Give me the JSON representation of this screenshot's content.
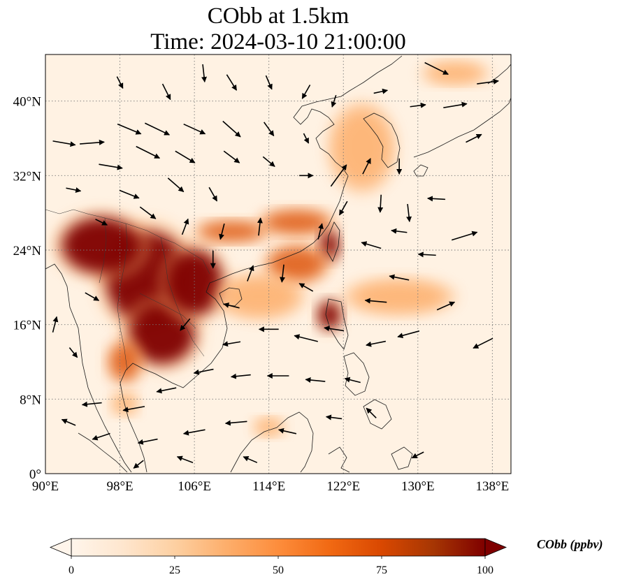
{
  "title": {
    "line1": "CObb at 1.5km",
    "line2": "Time: 2024-03-10 21:00:00"
  },
  "map": {
    "region": "East and Southeast Asia",
    "lon_range": [
      90,
      140
    ],
    "lat_range": [
      0,
      45
    ],
    "gridlines": "dotted",
    "lon_ticks": [
      {
        "value": 90,
        "label": "90°E"
      },
      {
        "value": 98,
        "label": "98°E"
      },
      {
        "value": 106,
        "label": "106°E"
      },
      {
        "value": 114,
        "label": "114°E"
      },
      {
        "value": 122,
        "label": "122°E"
      },
      {
        "value": 130,
        "label": "130°E"
      },
      {
        "value": 138,
        "label": "138°E"
      }
    ],
    "lat_ticks": [
      {
        "value": 0,
        "label": "0°"
      },
      {
        "value": 8,
        "label": "8°N"
      },
      {
        "value": 16,
        "label": "16°N"
      },
      {
        "value": 24,
        "label": "24°N"
      },
      {
        "value": 32,
        "label": "32°N"
      },
      {
        "value": 40,
        "label": "40°N"
      }
    ],
    "field_colors": {
      "low": "#fff5eb",
      "mid": "#fdae6b",
      "high": "#d94801",
      "max": "#7f0000"
    },
    "plumes": [
      {
        "lon": 101,
        "lat": 21,
        "rlon": 4.5,
        "rlat": 5.0,
        "level": "max"
      },
      {
        "lon": 96,
        "lat": 24.5,
        "rlon": 4.2,
        "rlat": 3.0,
        "level": "max"
      },
      {
        "lon": 102.5,
        "lat": 15,
        "rlon": 3.5,
        "rlat": 3.2,
        "level": "max"
      },
      {
        "lon": 106,
        "lat": 20.5,
        "rlon": 3.0,
        "rlat": 3.5,
        "level": "max"
      },
      {
        "lon": 98.5,
        "lat": 12,
        "rlon": 1.6,
        "rlat": 2.0,
        "level": "high"
      },
      {
        "lon": 110,
        "lat": 26,
        "rlon": 3.5,
        "rlat": 1.0,
        "level": "high"
      },
      {
        "lon": 117,
        "lat": 27,
        "rlon": 3.5,
        "rlat": 1.2,
        "level": "high"
      },
      {
        "lon": 120.5,
        "lat": 24.5,
        "rlon": 1.0,
        "rlat": 1.6,
        "level": "max"
      },
      {
        "lon": 117,
        "lat": 22.5,
        "rlon": 3.0,
        "rlat": 1.8,
        "level": "high"
      },
      {
        "lon": 120.5,
        "lat": 17,
        "rlon": 1.2,
        "rlat": 1.5,
        "level": "max"
      },
      {
        "lon": 113,
        "lat": 19,
        "rlon": 4.0,
        "rlat": 2.0,
        "level": "mid"
      },
      {
        "lon": 98.5,
        "lat": 7.5,
        "rlon": 1.2,
        "rlat": 1.0,
        "level": "mid"
      },
      {
        "lon": 114,
        "lat": 5,
        "rlon": 1.4,
        "rlat": 0.8,
        "level": "mid"
      },
      {
        "lon": 124,
        "lat": 35,
        "rlon": 3.0,
        "rlat": 4.0,
        "level": "mid"
      },
      {
        "lon": 134,
        "lat": 43,
        "rlon": 3.0,
        "rlat": 1.0,
        "level": "mid"
      },
      {
        "lon": 128,
        "lat": 19,
        "rlon": 5.0,
        "rlat": 1.6,
        "level": "mid"
      }
    ],
    "wind_vectors": [
      {
        "lon": 92,
        "lat": 35.5,
        "u": 2.3,
        "v": -0.4
      },
      {
        "lon": 95,
        "lat": 35.5,
        "u": 2.5,
        "v": 0.2
      },
      {
        "lon": 99,
        "lat": 37,
        "u": 2.4,
        "v": -1.0
      },
      {
        "lon": 102,
        "lat": 37,
        "u": 2.5,
        "v": -1.2
      },
      {
        "lon": 106,
        "lat": 37,
        "u": 2.2,
        "v": -1.0
      },
      {
        "lon": 110,
        "lat": 37,
        "u": 1.8,
        "v": -1.6
      },
      {
        "lon": 114,
        "lat": 37,
        "u": 1.0,
        "v": -1.4
      },
      {
        "lon": 97,
        "lat": 33,
        "u": 2.4,
        "v": -0.4
      },
      {
        "lon": 101,
        "lat": 34.5,
        "u": 2.4,
        "v": -1.2
      },
      {
        "lon": 105,
        "lat": 34,
        "u": 2.0,
        "v": -1.2
      },
      {
        "lon": 110,
        "lat": 34,
        "u": 1.6,
        "v": -1.2
      },
      {
        "lon": 114,
        "lat": 33.5,
        "u": 1.2,
        "v": -1.0
      },
      {
        "lon": 99,
        "lat": 30,
        "u": 2.0,
        "v": -0.8
      },
      {
        "lon": 104,
        "lat": 31,
        "u": 1.6,
        "v": -1.4
      },
      {
        "lon": 93,
        "lat": 30.5,
        "u": 1.5,
        "v": -0.3
      },
      {
        "lon": 108,
        "lat": 30,
        "u": 0.8,
        "v": -1.4
      },
      {
        "lon": 98,
        "lat": 42,
        "u": 0.6,
        "v": -1.2
      },
      {
        "lon": 103,
        "lat": 41,
        "u": 0.8,
        "v": -1.6
      },
      {
        "lon": 107,
        "lat": 43,
        "u": 0.2,
        "v": -1.8
      },
      {
        "lon": 110,
        "lat": 42,
        "u": 1.0,
        "v": -1.6
      },
      {
        "lon": 114,
        "lat": 42,
        "u": 0.6,
        "v": -1.4
      },
      {
        "lon": 118,
        "lat": 41,
        "u": -0.8,
        "v": -1.4
      },
      {
        "lon": 121,
        "lat": 40,
        "u": -0.4,
        "v": -1.2
      },
      {
        "lon": 118,
        "lat": 36,
        "u": 0.5,
        "v": -1.0
      },
      {
        "lon": 118,
        "lat": 32,
        "u": 1.4,
        "v": 0.0
      },
      {
        "lon": 121.5,
        "lat": 32,
        "u": 1.6,
        "v": 2.2
      },
      {
        "lon": 124.5,
        "lat": 33,
        "u": 0.8,
        "v": 1.6
      },
      {
        "lon": 126,
        "lat": 29,
        "u": -0.1,
        "v": -1.8
      },
      {
        "lon": 128,
        "lat": 33,
        "u": 0.0,
        "v": -1.6
      },
      {
        "lon": 129,
        "lat": 28,
        "u": 0.2,
        "v": -1.8
      },
      {
        "lon": 126,
        "lat": 41,
        "u": 1.4,
        "v": 0.3
      },
      {
        "lon": 130,
        "lat": 39.5,
        "u": 1.6,
        "v": 0.2
      },
      {
        "lon": 134,
        "lat": 39.5,
        "u": 2.4,
        "v": 0.4
      },
      {
        "lon": 137.5,
        "lat": 42,
        "u": 2.2,
        "v": 0.3
      },
      {
        "lon": 132,
        "lat": 43.5,
        "u": 2.4,
        "v": -1.2
      },
      {
        "lon": 136,
        "lat": 36,
        "u": 1.6,
        "v": 0.8
      },
      {
        "lon": 132,
        "lat": 29.5,
        "u": -1.8,
        "v": 0.1
      },
      {
        "lon": 135,
        "lat": 25.5,
        "u": 2.6,
        "v": 0.8
      },
      {
        "lon": 131,
        "lat": 23.5,
        "u": -1.8,
        "v": 0.1
      },
      {
        "lon": 128,
        "lat": 26,
        "u": -1.6,
        "v": 0.2
      },
      {
        "lon": 125,
        "lat": 24.5,
        "u": -2.0,
        "v": 0.6
      },
      {
        "lon": 128,
        "lat": 21,
        "u": -2.0,
        "v": 0.4
      },
      {
        "lon": 125.5,
        "lat": 18.5,
        "u": -2.2,
        "v": 0.2
      },
      {
        "lon": 133,
        "lat": 18,
        "u": 1.8,
        "v": 0.8
      },
      {
        "lon": 137,
        "lat": 14,
        "u": -2.0,
        "v": -1.0
      },
      {
        "lon": 129,
        "lat": 15,
        "u": -2.2,
        "v": -0.6
      },
      {
        "lon": 125.5,
        "lat": 14,
        "u": -2.0,
        "v": -0.4
      },
      {
        "lon": 121,
        "lat": 15.5,
        "u": -2.0,
        "v": 0.3
      },
      {
        "lon": 118,
        "lat": 14.5,
        "u": -2.4,
        "v": 0.6
      },
      {
        "lon": 114,
        "lat": 15.5,
        "u": -2.0,
        "v": 0.0
      },
      {
        "lon": 110,
        "lat": 14,
        "u": -1.8,
        "v": -0.3
      },
      {
        "lon": 107,
        "lat": 11,
        "u": -2.0,
        "v": -0.4
      },
      {
        "lon": 111,
        "lat": 10.5,
        "u": -2.0,
        "v": -0.2
      },
      {
        "lon": 115,
        "lat": 10.5,
        "u": -2.2,
        "v": 0.0
      },
      {
        "lon": 119,
        "lat": 10,
        "u": -2.0,
        "v": 0.2
      },
      {
        "lon": 123,
        "lat": 10,
        "u": -1.6,
        "v": 0.4
      },
      {
        "lon": 125,
        "lat": 6.5,
        "u": -1.0,
        "v": 1.0
      },
      {
        "lon": 103,
        "lat": 9,
        "u": -2.0,
        "v": -0.4
      },
      {
        "lon": 99.5,
        "lat": 7,
        "u": -2.2,
        "v": -0.4
      },
      {
        "lon": 95,
        "lat": 7.5,
        "u": -2.0,
        "v": -0.2
      },
      {
        "lon": 92.5,
        "lat": 5.5,
        "u": -1.4,
        "v": 0.6
      },
      {
        "lon": 96,
        "lat": 4,
        "u": -1.8,
        "v": -0.6
      },
      {
        "lon": 101,
        "lat": 3.5,
        "u": -2.0,
        "v": -0.4
      },
      {
        "lon": 106,
        "lat": 4.5,
        "u": -2.2,
        "v": -0.4
      },
      {
        "lon": 110.5,
        "lat": 5.5,
        "u": -2.2,
        "v": -0.2
      },
      {
        "lon": 116,
        "lat": 4.5,
        "u": -1.8,
        "v": 0.4
      },
      {
        "lon": 121,
        "lat": 6,
        "u": -1.6,
        "v": 0.2
      },
      {
        "lon": 105,
        "lat": 1.5,
        "u": -1.6,
        "v": 0.6
      },
      {
        "lon": 112,
        "lat": 1.5,
        "u": -1.4,
        "v": 0.6
      },
      {
        "lon": 130,
        "lat": 2,
        "u": -1.2,
        "v": -0.6
      },
      {
        "lon": 100,
        "lat": 1,
        "u": -1.0,
        "v": -0.8
      },
      {
        "lon": 93,
        "lat": 13,
        "u": 0.8,
        "v": -1.0
      },
      {
        "lon": 91,
        "lat": 16,
        "u": 0.4,
        "v": 1.6
      },
      {
        "lon": 95,
        "lat": 19,
        "u": 1.4,
        "v": -0.8
      },
      {
        "lon": 108,
        "lat": 23,
        "u": 0.0,
        "v": -1.8
      },
      {
        "lon": 112,
        "lat": 21.5,
        "u": 0.6,
        "v": 1.6
      },
      {
        "lon": 115.5,
        "lat": 21.5,
        "u": -0.2,
        "v": -1.8
      },
      {
        "lon": 118,
        "lat": 20,
        "u": -1.4,
        "v": 0.8
      },
      {
        "lon": 113,
        "lat": 26.5,
        "u": 0.2,
        "v": 1.8
      },
      {
        "lon": 109,
        "lat": 26,
        "u": -0.4,
        "v": -1.6
      },
      {
        "lon": 105,
        "lat": 26.5,
        "u": 0.6,
        "v": 1.6
      },
      {
        "lon": 101,
        "lat": 28,
        "u": 1.6,
        "v": -1.2
      },
      {
        "lon": 96,
        "lat": 27,
        "u": 1.2,
        "v": -0.6
      },
      {
        "lon": 122,
        "lat": 28.5,
        "u": -0.8,
        "v": -1.4
      },
      {
        "lon": 119.5,
        "lat": 26,
        "u": 0.4,
        "v": 1.6
      },
      {
        "lon": 110,
        "lat": 18,
        "u": -1.6,
        "v": 0.4
      },
      {
        "lon": 105,
        "lat": 16,
        "u": -1.0,
        "v": -1.2
      }
    ],
    "wind_color": "#000000"
  },
  "colorbar": {
    "label": "CObb (ppbv)",
    "min": 0,
    "max": 100,
    "ticks": [
      {
        "value": 0,
        "label": "0"
      },
      {
        "value": 25,
        "label": "25"
      },
      {
        "value": 50,
        "label": "50"
      },
      {
        "value": 75,
        "label": "75"
      },
      {
        "value": 100,
        "label": "100"
      }
    ],
    "extend": "both",
    "colors": [
      "#fff5eb",
      "#fee6ce",
      "#fdd0a2",
      "#fdae6b",
      "#fd8d3c",
      "#f16913",
      "#d94801",
      "#a63603",
      "#7f0000"
    ]
  }
}
